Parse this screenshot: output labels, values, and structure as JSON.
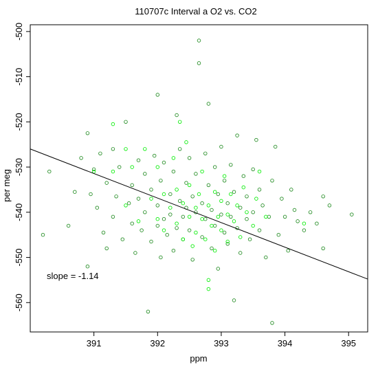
{
  "chart_data": {
    "type": "scatter",
    "title": "110707c   Interval a O2 vs. CO2",
    "xlabel": "ppm",
    "ylabel": "per meg",
    "xlim": [
      390.0,
      395.3
    ],
    "ylim": [
      -566.5,
      -498.5
    ],
    "xticks": [
      391,
      392,
      393,
      394,
      395
    ],
    "yticks": [
      -500,
      -510,
      -520,
      -530,
      -540,
      -550,
      -560
    ],
    "grid": false,
    "legend": "none",
    "annotation": "slope =  -1.14",
    "colors": {
      "series_dark": "#1f8a1f",
      "series_bright": "#00ee00",
      "regression_line": "#000000"
    },
    "point_count_note": "dense cloud of ~1200 points centered near (392.7, -540); representative sample included",
    "regression": {
      "slope": -1.14,
      "intercept_at_390": -526.0,
      "x": [
        390.0,
        395.3
      ],
      "y": [
        -526.0,
        -554.8
      ]
    },
    "series": [
      {
        "name": "dark",
        "points": [
          [
            390.2,
            -545.0
          ],
          [
            390.3,
            -531.0
          ],
          [
            390.6,
            -543.0
          ],
          [
            390.7,
            -535.5
          ],
          [
            390.8,
            -528.0
          ],
          [
            390.9,
            -522.5
          ],
          [
            390.95,
            -536.0
          ],
          [
            390.9,
            -552.0
          ],
          [
            391.0,
            -530.5
          ],
          [
            391.05,
            -539.0
          ],
          [
            391.1,
            -527.0
          ],
          [
            391.15,
            -544.5
          ],
          [
            391.2,
            -533.5
          ],
          [
            391.2,
            -548.0
          ],
          [
            391.3,
            -526.0
          ],
          [
            391.3,
            -541.0
          ],
          [
            391.35,
            -536.5
          ],
          [
            391.4,
            -530.0
          ],
          [
            391.45,
            -546.0
          ],
          [
            391.5,
            -520.0
          ],
          [
            391.55,
            -538.0
          ],
          [
            391.6,
            -534.0
          ],
          [
            391.6,
            -542.5
          ],
          [
            391.65,
            -549.0
          ],
          [
            391.7,
            -528.5
          ],
          [
            391.7,
            -537.0
          ],
          [
            391.75,
            -544.0
          ],
          [
            391.8,
            -531.5
          ],
          [
            391.8,
            -540.0
          ],
          [
            391.85,
            -562.0
          ],
          [
            391.9,
            -535.0
          ],
          [
            391.9,
            -546.5
          ],
          [
            391.95,
            -527.5
          ],
          [
            392.0,
            -538.5
          ],
          [
            392.0,
            -543.0
          ],
          [
            392.0,
            -514.0
          ],
          [
            392.05,
            -533.0
          ],
          [
            392.05,
            -550.0
          ],
          [
            392.1,
            -541.5
          ],
          [
            392.1,
            -529.0
          ],
          [
            392.15,
            -545.0
          ],
          [
            392.2,
            -536.0
          ],
          [
            392.2,
            -540.5
          ],
          [
            392.25,
            -531.0
          ],
          [
            392.25,
            -548.5
          ],
          [
            392.3,
            -518.5
          ],
          [
            392.3,
            -543.5
          ],
          [
            392.35,
            -537.5
          ],
          [
            392.35,
            -526.0
          ],
          [
            392.4,
            -541.0
          ],
          [
            392.4,
            -546.0
          ],
          [
            392.45,
            -533.5
          ],
          [
            392.45,
            -539.0
          ],
          [
            392.5,
            -528.0
          ],
          [
            392.5,
            -544.0
          ],
          [
            392.55,
            -536.5
          ],
          [
            392.55,
            -550.5
          ],
          [
            392.6,
            -540.0
          ],
          [
            392.6,
            -531.5
          ],
          [
            392.65,
            -502.0
          ],
          [
            392.65,
            -507.0
          ],
          [
            392.7,
            -538.0
          ],
          [
            392.7,
            -545.5
          ],
          [
            392.75,
            -527.0
          ],
          [
            392.75,
            -541.5
          ],
          [
            392.8,
            -516.0
          ],
          [
            392.8,
            -534.0
          ],
          [
            392.85,
            -548.0
          ],
          [
            392.85,
            -539.5
          ],
          [
            392.9,
            -543.0
          ],
          [
            392.9,
            -530.0
          ],
          [
            392.95,
            -536.0
          ],
          [
            392.95,
            -552.5
          ],
          [
            393.0,
            -540.5
          ],
          [
            393.0,
            -525.5
          ],
          [
            393.05,
            -544.5
          ],
          [
            393.05,
            -533.0
          ],
          [
            393.1,
            -538.0
          ],
          [
            393.1,
            -547.0
          ],
          [
            393.15,
            -529.5
          ],
          [
            393.15,
            -541.0
          ],
          [
            393.2,
            -535.5
          ],
          [
            393.2,
            -559.5
          ],
          [
            393.25,
            -543.5
          ],
          [
            393.25,
            -523.0
          ],
          [
            393.3,
            -539.0
          ],
          [
            393.3,
            -549.0
          ],
          [
            393.35,
            -532.0
          ],
          [
            393.4,
            -541.5
          ],
          [
            393.4,
            -536.5
          ],
          [
            393.45,
            -546.0
          ],
          [
            393.5,
            -530.5
          ],
          [
            393.5,
            -540.0
          ],
          [
            393.55,
            -524.0
          ],
          [
            393.6,
            -544.0
          ],
          [
            393.6,
            -535.0
          ],
          [
            393.65,
            -538.5
          ],
          [
            393.7,
            -550.0
          ],
          [
            393.75,
            -541.0
          ],
          [
            393.8,
            -533.0
          ],
          [
            393.8,
            -564.5
          ],
          [
            393.85,
            -525.5
          ],
          [
            393.9,
            -545.0
          ],
          [
            393.95,
            -537.0
          ],
          [
            394.0,
            -541.0
          ],
          [
            394.05,
            -548.5
          ],
          [
            394.1,
            -535.0
          ],
          [
            394.15,
            -539.5
          ],
          [
            394.2,
            -542.0
          ],
          [
            394.3,
            -544.0
          ],
          [
            394.4,
            -540.0
          ],
          [
            394.5,
            -542.5
          ],
          [
            394.6,
            -536.5
          ],
          [
            394.6,
            -548.0
          ],
          [
            394.7,
            -538.5
          ],
          [
            395.05,
            -540.5
          ]
        ]
      },
      {
        "name": "bright",
        "points": [
          [
            391.0,
            -531.0
          ],
          [
            391.3,
            -520.5
          ],
          [
            391.3,
            -531.0
          ],
          [
            391.5,
            -526.0
          ],
          [
            391.5,
            -538.5
          ],
          [
            391.6,
            -530.0
          ],
          [
            391.7,
            -542.0
          ],
          [
            391.8,
            -526.0
          ],
          [
            391.9,
            -537.0
          ],
          [
            392.0,
            -530.0
          ],
          [
            392.0,
            -541.5
          ],
          [
            392.1,
            -536.0
          ],
          [
            392.1,
            -544.0
          ],
          [
            392.2,
            -539.0
          ],
          [
            392.25,
            -528.0
          ],
          [
            392.3,
            -542.5
          ],
          [
            392.3,
            -535.0
          ],
          [
            392.35,
            -520.0
          ],
          [
            392.4,
            -546.0
          ],
          [
            392.4,
            -538.0
          ],
          [
            392.45,
            -524.5
          ],
          [
            392.5,
            -541.0
          ],
          [
            392.5,
            -534.0
          ],
          [
            392.55,
            -547.5
          ],
          [
            392.6,
            -539.0
          ],
          [
            392.6,
            -544.5
          ],
          [
            392.65,
            -536.0
          ],
          [
            392.7,
            -541.5
          ],
          [
            392.7,
            -531.0
          ],
          [
            392.75,
            -546.0
          ],
          [
            392.8,
            -538.5
          ],
          [
            392.8,
            -555.0
          ],
          [
            392.85,
            -543.0
          ],
          [
            392.9,
            -535.5
          ],
          [
            392.9,
            -548.5
          ],
          [
            392.95,
            -541.0
          ],
          [
            393.0,
            -537.5
          ],
          [
            393.0,
            -544.0
          ],
          [
            393.05,
            -532.0
          ],
          [
            393.1,
            -540.5
          ],
          [
            393.1,
            -546.5
          ],
          [
            393.15,
            -536.0
          ],
          [
            393.2,
            -542.0
          ],
          [
            393.25,
            -538.5
          ],
          [
            393.3,
            -545.5
          ],
          [
            393.35,
            -534.5
          ],
          [
            393.4,
            -540.0
          ],
          [
            393.5,
            -543.0
          ],
          [
            393.55,
            -537.0
          ],
          [
            393.6,
            -531.0
          ],
          [
            393.7,
            -541.0
          ],
          [
            394.3,
            -542.5
          ],
          [
            392.8,
            -557.0
          ]
        ]
      }
    ]
  }
}
